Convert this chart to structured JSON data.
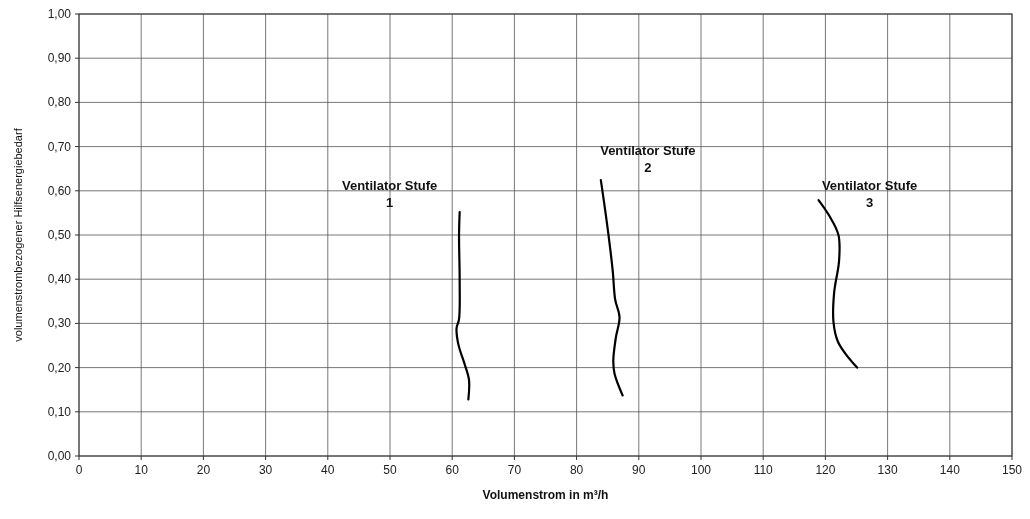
{
  "chart_data": {
    "type": "line",
    "xlabel": "Volumenstrom in m³/h",
    "ylabel": "volumenstrombezogener Hilfsenergiebedarf",
    "xlim": [
      0,
      150
    ],
    "xticks": [
      0,
      10,
      20,
      30,
      40,
      50,
      60,
      70,
      80,
      90,
      100,
      110,
      120,
      130,
      140,
      150
    ],
    "ylim": [
      0,
      1
    ],
    "yticks": [
      {
        "value": 0,
        "label": "0,00"
      },
      {
        "value": 0.1,
        "label": "0,10"
      },
      {
        "value": 0.2,
        "label": "0,20"
      },
      {
        "value": 0.3,
        "label": "0,30"
      },
      {
        "value": 0.4,
        "label": "0,40"
      },
      {
        "value": 0.5,
        "label": "0,50"
      },
      {
        "value": 0.6,
        "label": "0,60"
      },
      {
        "value": 0.7,
        "label": "0,70"
      },
      {
        "value": 0.8,
        "label": "0,80"
      },
      {
        "value": 0.9,
        "label": "0,90"
      },
      {
        "value": 1,
        "label": "1,00"
      }
    ],
    "grid": true,
    "legend": false,
    "marker": "none",
    "line_style": "solid",
    "series": [
      {
        "name": "Ventilator Stufe 1",
        "color": "#000000",
        "x": [
          61.2,
          61.1,
          61.2,
          61.1,
          60.7,
          61.0,
          62.0,
          62.7,
          62.6
        ],
        "values": [
          0.552,
          0.5,
          0.398,
          0.31,
          0.289,
          0.252,
          0.208,
          0.172,
          0.128
        ]
      },
      {
        "name": "Ventilator Stufe 2",
        "color": "#000000",
        "x": [
          83.9,
          85.0,
          85.8,
          86.2,
          86.9,
          86.3,
          85.9,
          86.1,
          87.4
        ],
        "values": [
          0.624,
          0.514,
          0.42,
          0.354,
          0.314,
          0.267,
          0.216,
          0.186,
          0.137
        ]
      },
      {
        "name": "Ventilator Stufe 3",
        "color": "#000000",
        "x": [
          118.9,
          120.6,
          122.1,
          122.2,
          121.4,
          121.3,
          122.0,
          123.3,
          125.1
        ],
        "values": [
          0.579,
          0.544,
          0.5,
          0.442,
          0.369,
          0.303,
          0.259,
          0.23,
          0.2
        ]
      }
    ]
  }
}
